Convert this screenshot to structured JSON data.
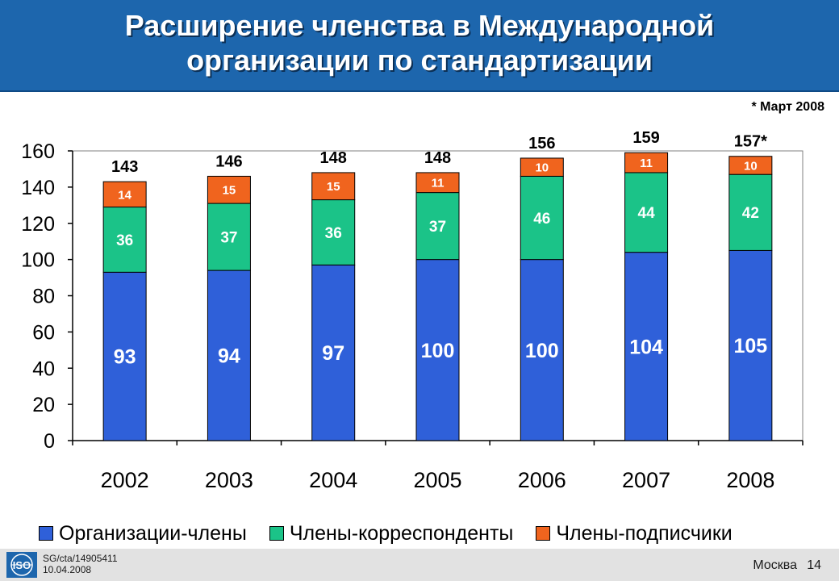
{
  "header": {
    "title_line1": "Расширение членства в Международной",
    "title_line2": "организации по стандартизации"
  },
  "note": "* Март 2008",
  "footer": {
    "logo_text": "ISO",
    "ref": "SG/cta/14905411",
    "date": "10.04.2008",
    "city": "Москва",
    "page": "14"
  },
  "colors": {
    "members": "#2f60d9",
    "correspondents": "#1bc388",
    "subscribers": "#f0641e",
    "header_bg": "#1d66ad"
  },
  "chart_data": {
    "type": "bar",
    "stacked": true,
    "categories": [
      "2002",
      "2003",
      "2004",
      "2005",
      "2006",
      "2007",
      "2008"
    ],
    "series": [
      {
        "name": "Организации-члены",
        "color": "#2f60d9",
        "values": [
          93,
          94,
          97,
          100,
          100,
          104,
          105
        ]
      },
      {
        "name": "Члены-корреспонденты",
        "color": "#1bc388",
        "values": [
          36,
          37,
          36,
          37,
          46,
          44,
          42
        ]
      },
      {
        "name": "Члены-подписчики",
        "color": "#f0641e",
        "values": [
          14,
          15,
          15,
          11,
          10,
          11,
          10
        ]
      }
    ],
    "totals": [
      "143",
      "146",
      "148",
      "148",
      "156",
      "159",
      "157*"
    ],
    "ylim": [
      0,
      160
    ],
    "yticks": [
      0,
      20,
      40,
      60,
      80,
      100,
      120,
      140,
      160
    ],
    "grid": false,
    "legend": "bottom"
  }
}
